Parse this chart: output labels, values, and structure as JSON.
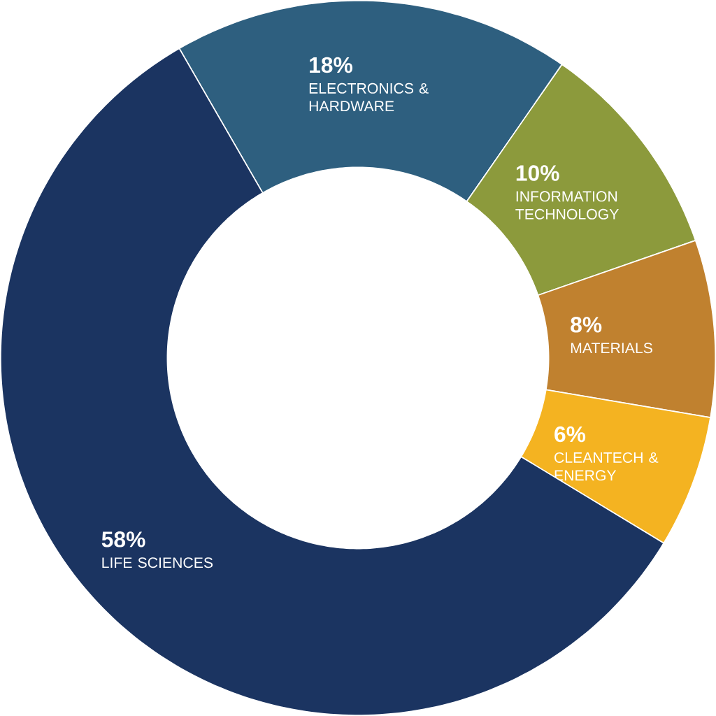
{
  "chart_data": {
    "type": "donut",
    "categories": [
      "ELECTRONICS & HARDWARE",
      "INFORMATION TECHNOLOGY",
      "MATERIALS",
      "CLEANTECH & ENERGY",
      "LIFE SCIENCES"
    ],
    "values": [
      18,
      10,
      8,
      6,
      58
    ],
    "value_labels": [
      "18%",
      "10%",
      "8%",
      "6%",
      "58%"
    ],
    "colors": [
      "#2e5f7f",
      "#8c9a3c",
      "#c0812f",
      "#f4b321",
      "#1b3461"
    ]
  }
}
